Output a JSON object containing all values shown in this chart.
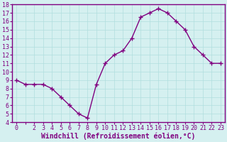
{
  "x": [
    0,
    1,
    2,
    3,
    4,
    5,
    6,
    7,
    8,
    9,
    10,
    11,
    12,
    13,
    14,
    15,
    16,
    17,
    18,
    19,
    20,
    21,
    22,
    23
  ],
  "y": [
    9.0,
    8.5,
    8.5,
    8.5,
    8.0,
    7.0,
    6.0,
    5.0,
    4.5,
    8.5,
    11.0,
    12.0,
    12.5,
    14.0,
    16.5,
    17.0,
    17.5,
    17.0,
    16.0,
    15.0,
    13.0,
    12.0,
    11.0,
    11.0
  ],
  "line_color": "#800080",
  "marker": "+",
  "marker_size": 4,
  "xlabel": "Windchill (Refroidissement éolien,°C)",
  "xlabel_fontsize": 7,
  "ylim": [
    4,
    18
  ],
  "xlim": [
    -0.5,
    23.5
  ],
  "yticks": [
    4,
    5,
    6,
    7,
    8,
    9,
    10,
    11,
    12,
    13,
    14,
    15,
    16,
    17,
    18
  ],
  "xticks": [
    0,
    2,
    3,
    4,
    5,
    6,
    7,
    8,
    9,
    10,
    11,
    12,
    13,
    14,
    15,
    16,
    17,
    18,
    19,
    20,
    21,
    22,
    23
  ],
  "tick_fontsize": 6,
  "background_color": "#d5f0f0",
  "grid_color": "#b0dede",
  "line_width": 1.0,
  "spine_color": "#800080"
}
